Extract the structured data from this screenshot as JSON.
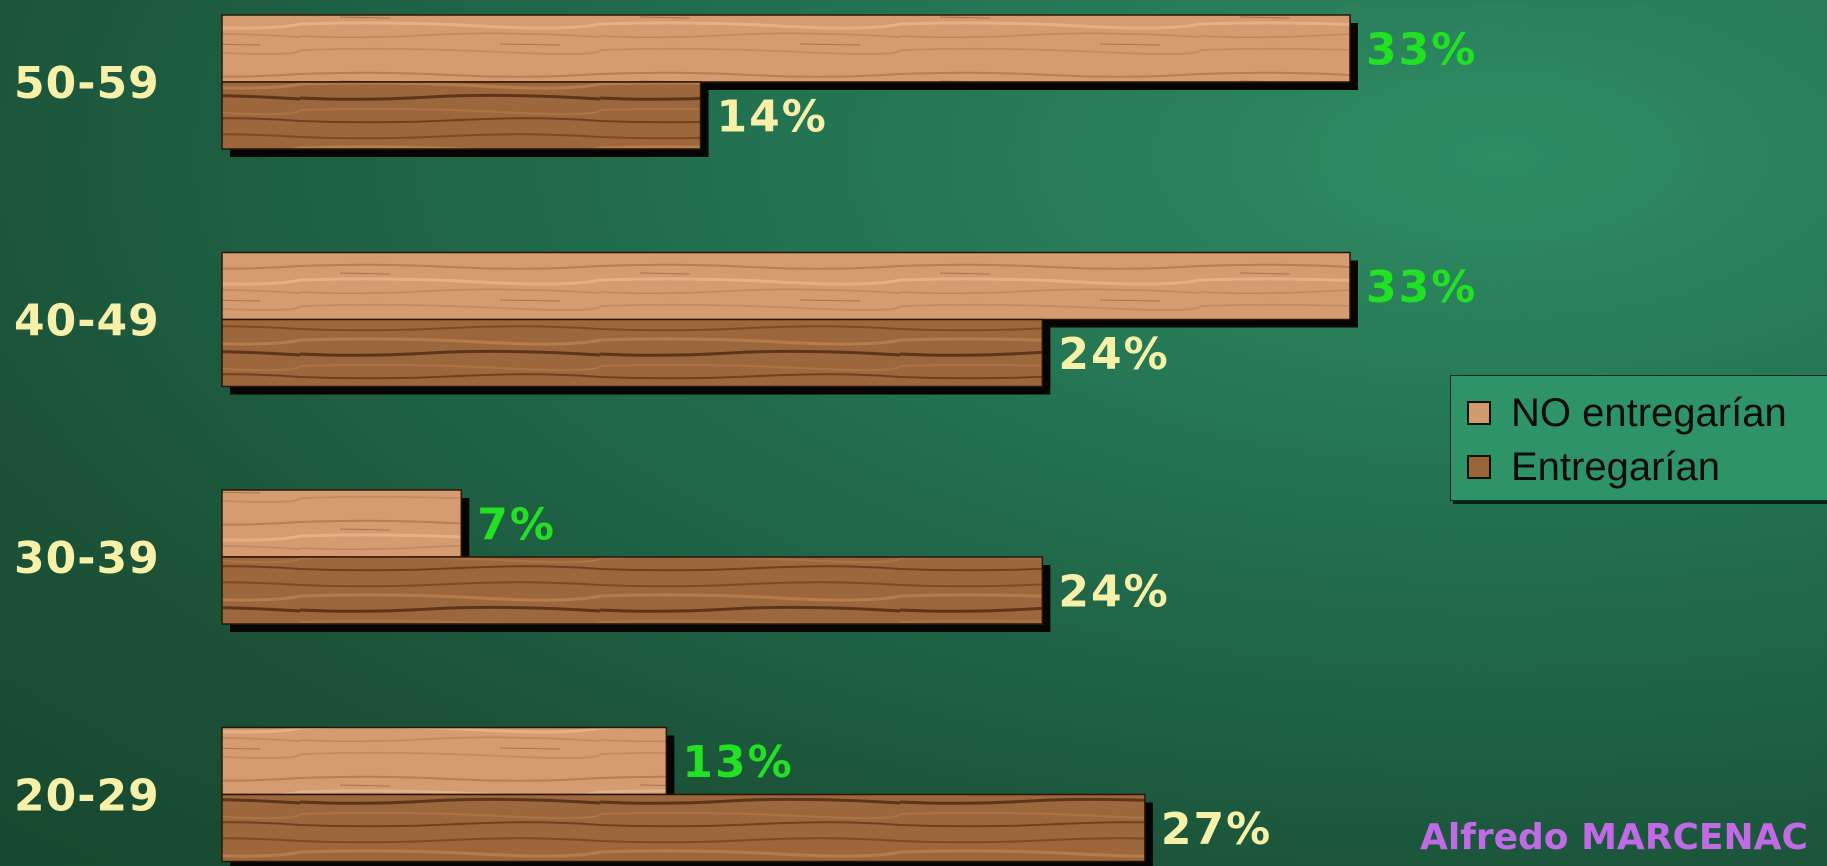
{
  "chart_data": {
    "type": "bar",
    "orientation": "horizontal",
    "categories": [
      "50-59",
      "40-49",
      "30-39",
      "20-29"
    ],
    "series": [
      {
        "name": "NO entregarían",
        "values": [
          33,
          33,
          7,
          13
        ],
        "labels": [
          "33%",
          "33%",
          "7%",
          "13%"
        ],
        "color": "#d39a6e",
        "label_color": "#22e022"
      },
      {
        "name": "Entregarían",
        "values": [
          14,
          24,
          24,
          27
        ],
        "labels": [
          "14%",
          "24%",
          "24%",
          "27%"
        ],
        "color": "#9a6439",
        "label_color": "#f6f0a8"
      }
    ],
    "xlim": [
      0,
      33
    ],
    "legend_position": "right",
    "grid": false
  },
  "credit": "Alfredo MARCENAC"
}
